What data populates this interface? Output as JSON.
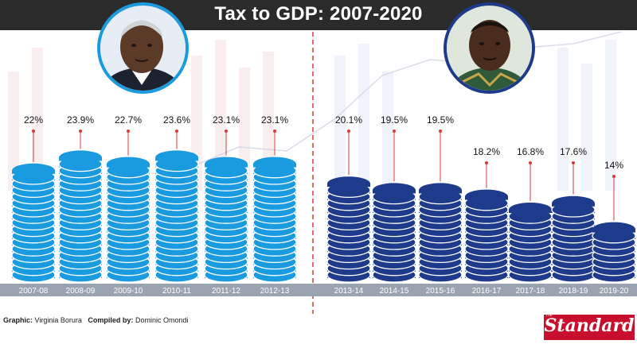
{
  "title": "Tax to GDP: 2007-2020",
  "credits": {
    "graphic_label": "Graphic:",
    "graphic_name": "Virginia Borura",
    "compiled_label": "Compiled by:",
    "compiled_name": "Dominic Omondi"
  },
  "logo": {
    "text": "Standard",
    "sub": "The"
  },
  "colors": {
    "left_coin": "#1a9be0",
    "left_coin_edge": "#ffffff",
    "right_coin": "#1e3a8a",
    "right_coin_edge": "#ffffff",
    "axis_band": "#9aa3b0",
    "pin": "#d83a3a",
    "divider": "#d83a3a",
    "logo": "#c8102e"
  },
  "chart_data": {
    "type": "bar",
    "title": "Tax to GDP: 2007-2020",
    "categories": [
      "2007-08",
      "2008-09",
      "2009-10",
      "2010-11",
      "2011-12",
      "2012-13",
      "2013-14",
      "2014-15",
      "2015-16",
      "2016-17",
      "2017-18",
      "2018-19",
      "2019-20"
    ],
    "values": [
      22,
      23.9,
      22.7,
      23.6,
      23.1,
      23.1,
      20.1,
      19.5,
      19.5,
      18.2,
      16.8,
      17.6,
      14
    ],
    "value_labels": [
      "22%",
      "23.9%",
      "22.7%",
      "23.6%",
      "23.1%",
      "23.1%",
      "20.1%",
      "19.5%",
      "19.5%",
      "18.2%",
      "16.8%",
      "17.6%",
      "14%"
    ],
    "groups": [
      {
        "categories": [
          "2007-08",
          "2008-09",
          "2009-10",
          "2010-11",
          "2011-12",
          "2012-13"
        ],
        "color": "left"
      },
      {
        "categories": [
          "2013-14",
          "2014-15",
          "2015-16",
          "2016-17",
          "2017-18",
          "2018-19",
          "2019-20"
        ],
        "color": "right"
      }
    ],
    "unit": "%",
    "xlabel": "",
    "ylabel": "",
    "grid": false,
    "legend": "none"
  }
}
